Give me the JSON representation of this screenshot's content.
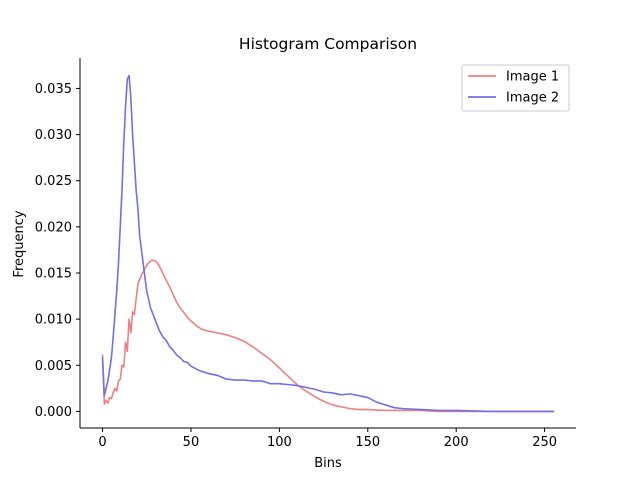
{
  "chart_data": {
    "type": "line",
    "title": "Histogram Comparison",
    "xlabel": "Bins",
    "ylabel": "Frequency",
    "xlim": [
      -12.75,
      267.75
    ],
    "ylim": [
      -0.0018,
      0.0383
    ],
    "xticks": [
      0,
      50,
      100,
      150,
      200,
      250
    ],
    "xtick_labels": [
      "0",
      "50",
      "100",
      "150",
      "200",
      "250"
    ],
    "yticks": [
      0.0,
      0.005,
      0.01,
      0.015,
      0.02,
      0.025,
      0.03,
      0.035
    ],
    "ytick_labels": [
      "0.000",
      "0.005",
      "0.010",
      "0.015",
      "0.020",
      "0.025",
      "0.030",
      "0.035"
    ],
    "grid": false,
    "legend_position": "top-right",
    "series": [
      {
        "name": "Image 1",
        "color": "#f08080",
        "x": [
          0,
          1,
          2,
          3,
          4,
          5,
          6,
          7,
          8,
          9,
          10,
          11,
          12,
          13,
          14,
          15,
          16,
          17,
          18,
          19,
          20,
          22,
          24,
          26,
          28,
          30,
          32,
          34,
          36,
          38,
          40,
          42,
          44,
          46,
          48,
          50,
          53,
          56,
          60,
          65,
          70,
          75,
          80,
          85,
          90,
          95,
          100,
          105,
          110,
          115,
          120,
          125,
          130,
          135,
          140,
          145,
          150,
          160,
          170,
          180,
          190,
          200,
          220,
          240,
          255
        ],
        "values": [
          0.0061,
          0.0008,
          0.0012,
          0.0009,
          0.0015,
          0.0014,
          0.002,
          0.0025,
          0.0022,
          0.0033,
          0.0035,
          0.005,
          0.0048,
          0.0075,
          0.0065,
          0.01,
          0.0085,
          0.0108,
          0.0105,
          0.0122,
          0.0138,
          0.0148,
          0.0155,
          0.0161,
          0.0164,
          0.0163,
          0.0158,
          0.015,
          0.0142,
          0.0135,
          0.0126,
          0.0118,
          0.0112,
          0.0107,
          0.0102,
          0.0098,
          0.0093,
          0.0089,
          0.0087,
          0.0085,
          0.0083,
          0.008,
          0.0076,
          0.007,
          0.0063,
          0.0056,
          0.0047,
          0.0038,
          0.0029,
          0.0022,
          0.0016,
          0.0011,
          0.0007,
          0.0005,
          0.0003,
          0.0002,
          0.0002,
          0.0001,
          0.0001,
          0.0001,
          0.0,
          0.0,
          0.0,
          0.0,
          0.0
        ]
      },
      {
        "name": "Image 2",
        "color": "#7070ee",
        "x": [
          0,
          1,
          2,
          3,
          4,
          5,
          6,
          7,
          8,
          9,
          10,
          11,
          12,
          13,
          14,
          15,
          16,
          17,
          18,
          19,
          20,
          21,
          22,
          23,
          24,
          25,
          26,
          27,
          28,
          30,
          32,
          34,
          36,
          38,
          40,
          42,
          44,
          46,
          48,
          50,
          55,
          60,
          65,
          70,
          75,
          80,
          85,
          90,
          95,
          100,
          105,
          110,
          115,
          120,
          125,
          130,
          135,
          140,
          145,
          150,
          155,
          160,
          165,
          170,
          180,
          190,
          200,
          220,
          240,
          255
        ],
        "values": [
          0.0058,
          0.0017,
          0.0025,
          0.0033,
          0.0045,
          0.0058,
          0.008,
          0.0105,
          0.013,
          0.016,
          0.02,
          0.024,
          0.029,
          0.033,
          0.036,
          0.0364,
          0.034,
          0.03,
          0.027,
          0.024,
          0.022,
          0.019,
          0.0175,
          0.016,
          0.0145,
          0.013,
          0.0122,
          0.0113,
          0.0108,
          0.0098,
          0.0088,
          0.0081,
          0.0077,
          0.007,
          0.0066,
          0.0061,
          0.0058,
          0.0054,
          0.0053,
          0.0049,
          0.0044,
          0.0041,
          0.0039,
          0.0035,
          0.0034,
          0.0034,
          0.0033,
          0.0033,
          0.003,
          0.003,
          0.0029,
          0.0028,
          0.0026,
          0.0024,
          0.0021,
          0.002,
          0.0018,
          0.0019,
          0.0017,
          0.0015,
          0.001,
          0.0007,
          0.0004,
          0.0003,
          0.0002,
          0.0001,
          0.0001,
          0.0,
          0.0,
          0.0
        ]
      }
    ]
  }
}
